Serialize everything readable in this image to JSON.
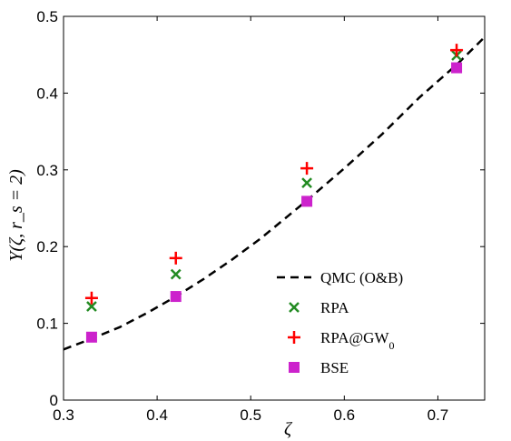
{
  "chart_data": {
    "type": "scatter",
    "xlabel": "ζ",
    "ylabel": "Υ(ζ, r_s = 2)",
    "xlim": [
      0.3,
      0.75
    ],
    "ylim": [
      0,
      0.5
    ],
    "xticks": [
      "0.3",
      "0.4",
      "0.5",
      "0.6",
      "0.7"
    ],
    "yticks": [
      "0",
      "0.1",
      "0.2",
      "0.3",
      "0.4",
      "0.5"
    ],
    "grid": false,
    "legend_position": "bottom-right",
    "series": [
      {
        "name": "QMC (O&B)",
        "kind": "line",
        "style": "dashed",
        "color": "#000000",
        "x": [
          0.3,
          0.33,
          0.36,
          0.39,
          0.42,
          0.45,
          0.48,
          0.51,
          0.54,
          0.56,
          0.6,
          0.64,
          0.68,
          0.72,
          0.75
        ],
        "y": [
          0.066,
          0.08,
          0.095,
          0.114,
          0.135,
          0.158,
          0.183,
          0.21,
          0.24,
          0.26,
          0.302,
          0.346,
          0.394,
          0.437,
          0.473
        ]
      },
      {
        "name": "RPA",
        "kind": "marker",
        "marker": "x",
        "color": "#228B22",
        "x": [
          0.33,
          0.42,
          0.56,
          0.72
        ],
        "y": [
          0.122,
          0.164,
          0.283,
          0.449
        ]
      },
      {
        "name": "RPA@GW",
        "name_subscript": "0",
        "kind": "marker",
        "marker": "plus",
        "color": "#FF0000",
        "x": [
          0.33,
          0.42,
          0.56,
          0.72
        ],
        "y": [
          0.133,
          0.185,
          0.302,
          0.456
        ]
      },
      {
        "name": "BSE",
        "kind": "marker",
        "marker": "square",
        "color": "#CC22CC",
        "x": [
          0.33,
          0.42,
          0.56,
          0.72
        ],
        "y": [
          0.082,
          0.135,
          0.259,
          0.433
        ]
      }
    ]
  }
}
